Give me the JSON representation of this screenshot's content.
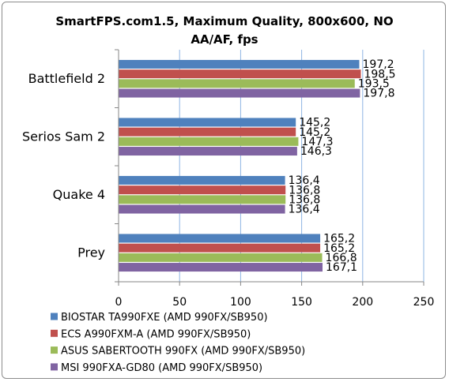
{
  "chart_data": {
    "type": "bar",
    "orientation": "horizontal",
    "title_lines": [
      "SmartFPS.com1.5, Maximum Quality, 800x600, NO",
      "AA/AF, fps"
    ],
    "categories": [
      "Battlefield 2",
      "Serios Sam 2",
      "Quake 4",
      "Prey"
    ],
    "series": [
      {
        "name": "BIOSTAR TA990FXE (AMD 990FX/SB950)",
        "color": "#4f81bd",
        "values": [
          197.2,
          145.2,
          136.4,
          165.2
        ],
        "labels": [
          "197,2",
          "145,2",
          "136,4",
          "165,2"
        ]
      },
      {
        "name": "ECS A990FXM-A (AMD 990FX/SB950)",
        "color": "#c0504d",
        "values": [
          198.5,
          145.2,
          136.8,
          165.2
        ],
        "labels": [
          "198,5",
          "145,2",
          "136,8",
          "165,2"
        ]
      },
      {
        "name": "ASUS SABERTOOTH 990FX (AMD 990FX/SB950)",
        "color": "#9bbb59",
        "values": [
          193.5,
          147.3,
          136.8,
          166.8
        ],
        "labels": [
          "193,5",
          "147,3",
          "136,8",
          "166,8"
        ]
      },
      {
        "name": "MSI 990FXA-GD80 (AMD 990FX/SB950)",
        "color": "#8064a2",
        "values": [
          197.8,
          146.3,
          136.4,
          167.1
        ],
        "labels": [
          "197,8",
          "146,3",
          "136,4",
          "167,1"
        ]
      }
    ],
    "xlim": [
      0,
      250
    ],
    "xticks": [
      0,
      50,
      100,
      150,
      200,
      250
    ],
    "grid": true,
    "legend_position": "bottom"
  }
}
